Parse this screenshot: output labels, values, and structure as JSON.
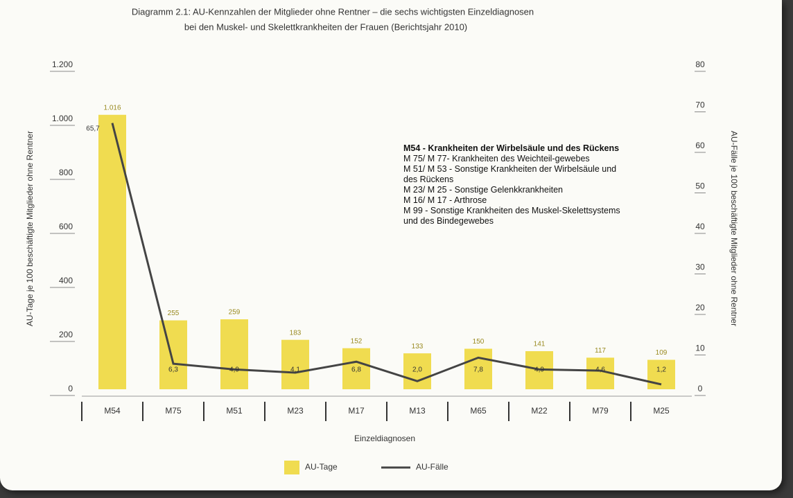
{
  "chart_data": {
    "type": "bar-line",
    "title": "Diagramm 2.1: AU-Kennzahlen der Mitglieder ohne Rentner – die sechs wichtigsten Einzeldiagnosen",
    "subtitle": "bei den Muskel- und Skelettkrankheiten der Frauen (Berichtsjahr 2010)",
    "y_label": "AU-Tage je 100 beschäftigte Mitglieder ohne Rentner",
    "y2_label": "AU-Fälle je 100 beschäftigte Mitglieder ohne Rentner",
    "x_label": "Einzeldiagnosen",
    "categories": [
      "M54",
      "M75",
      "M51",
      "M23",
      "M17",
      "M13",
      "M65",
      "M22",
      "M79",
      "M25"
    ],
    "ylim": [
      0,
      1200
    ],
    "yticks": [
      0,
      200,
      400,
      600,
      800,
      {
        "value": 1000,
        "label": "1.000"
      },
      {
        "value": 1200,
        "label": "1.200"
      }
    ],
    "y2lim": [
      0,
      80
    ],
    "y2ticks": [
      0,
      10,
      20,
      30,
      40,
      50,
      60,
      70,
      80
    ],
    "series": [
      {
        "name": "AU-Tage",
        "color": "#f0dc50",
        "kind": "bar",
        "values": [
          1016,
          255,
          259,
          183,
          152,
          133,
          150,
          141,
          117,
          109
        ],
        "value_labels": [
          "1.016",
          "255",
          "259",
          "183",
          "152",
          "133",
          "150",
          "141",
          "117",
          "109"
        ]
      },
      {
        "name": "AU-Fälle",
        "color": "#444444",
        "kind": "line",
        "axis": "y2",
        "values": [
          65.7,
          6.3,
          4.9,
          4.1,
          6.8,
          2.0,
          7.8,
          4.9,
          4.6,
          1.2
        ],
        "value_labels": [
          "65,7",
          "6,3",
          "4,9",
          "4,1",
          "6,8",
          "2,0",
          "7,8",
          "4,9",
          "4,6",
          "1,2"
        ]
      }
    ],
    "annotations": [
      "M54 - Krankheiten der Wirbelsäule und des Rückens",
      "M 75/ M 77- Krankheiten des Weichteil-gewebes",
      "M 51/ M 53 - Sonstige Krankheiten der Wirbelsäule und des Rückens",
      "M 23/ M 25 - Sonstige Gelenkkrankheiten",
      "M 16/ M 17 - Arthrose",
      "M 99 - Sonstige Krankheiten des Muskel-Skelettsystems und des Bindegewebes"
    ]
  }
}
